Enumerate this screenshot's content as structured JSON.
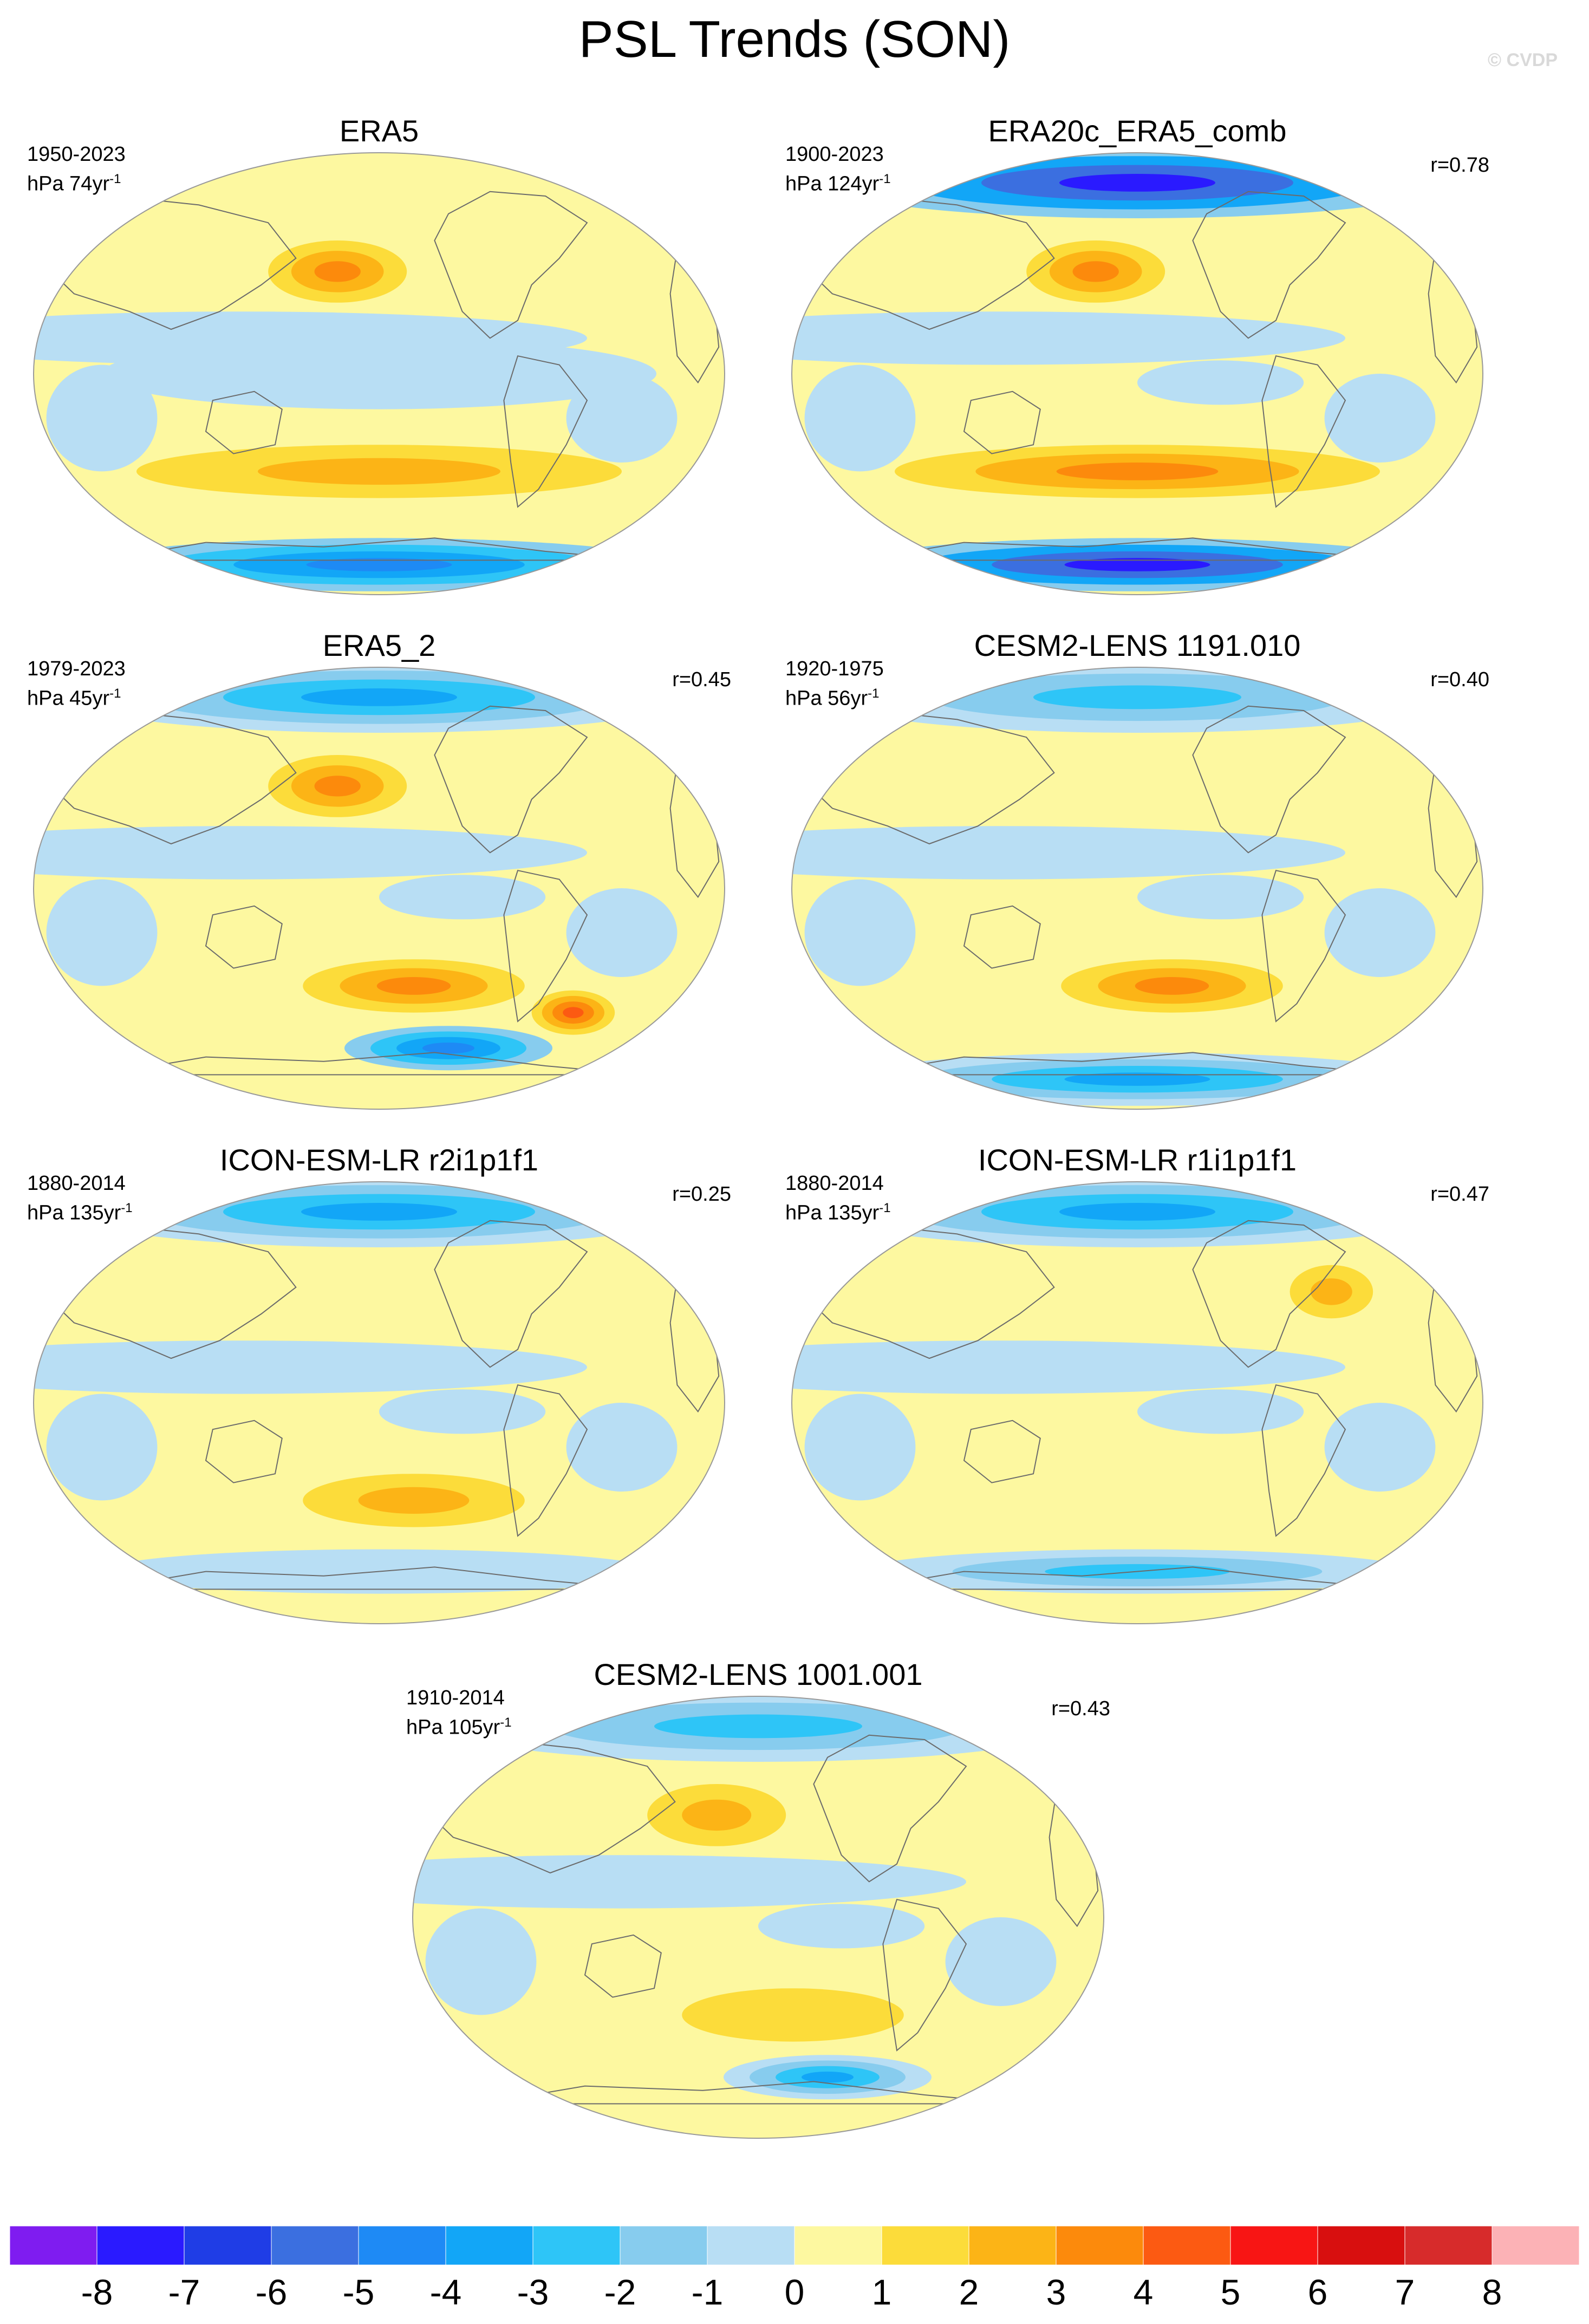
{
  "title": "PSL Trends (SON)",
  "watermark": "© CVDP",
  "panels": [
    {
      "title": "ERA5",
      "period": "1950-2023",
      "units": "hPa 74yr",
      "units_sup": "-1",
      "r": ""
    },
    {
      "title": "ERA20c_ERA5_comb",
      "period": "1900-2023",
      "units": "hPa 124yr",
      "units_sup": "-1",
      "r": "r=0.78"
    },
    {
      "title": "ERA5_2",
      "period": "1979-2023",
      "units": "hPa 45yr",
      "units_sup": "-1",
      "r": "r=0.45"
    },
    {
      "title": "CESM2-LENS 1191.010",
      "period": "1920-1975",
      "units": "hPa 56yr",
      "units_sup": "-1",
      "r": "r=0.40"
    },
    {
      "title": "ICON-ESM-LR r2i1p1f1",
      "period": "1880-2014",
      "units": "hPa 135yr",
      "units_sup": "-1",
      "r": "r=0.25"
    },
    {
      "title": "ICON-ESM-LR r1i1p1f1",
      "period": "1880-2014",
      "units": "hPa 135yr",
      "units_sup": "-1",
      "r": "r=0.47"
    },
    {
      "title": "CESM2-LENS 1001.001",
      "period": "1910-2014",
      "units": "hPa 105yr",
      "units_sup": "-1",
      "r": "r=0.43"
    }
  ],
  "colorbar": {
    "ticks": [
      "-8",
      "-7",
      "-6",
      "-5",
      "-4",
      "-3",
      "-2",
      "-1",
      "0",
      "1",
      "2",
      "3",
      "4",
      "5",
      "6",
      "7",
      "8"
    ],
    "colors": [
      "#7f1cf0",
      "#2a1aff",
      "#1f3de6",
      "#3b6fe0",
      "#1e8af5",
      "#12a6f7",
      "#2ec5f7",
      "#87ccee",
      "#b8def4",
      "#fdf8a0",
      "#fcdc3a",
      "#fcb416",
      "#fc8a0c",
      "#fc5a12",
      "#f81514",
      "#d80f0f",
      "#d72b2b",
      "#fcb2b6"
    ]
  },
  "chart_data": {
    "type": "heatmap",
    "projection": "Robinson world map, Pacific-centred",
    "variable": "PSL trend",
    "units": "hPa",
    "levels": [
      -8,
      -7,
      -6,
      -5,
      -4,
      -3,
      -2,
      -1,
      0,
      1,
      2,
      3,
      4,
      5,
      6,
      7,
      8
    ],
    "panels": [
      {
        "name": "ERA5",
        "period": "1950-2023",
        "r": null,
        "features": [
          {
            "region": "North Pacific",
            "value": 3
          },
          {
            "region": "Southern mid-latitudes",
            "value": 2
          },
          {
            "region": "Antarctic",
            "value": -5
          },
          {
            "region": "Tropics",
            "value": -1
          }
        ]
      },
      {
        "name": "ERA20c_ERA5_comb",
        "period": "1900-2023",
        "r": 0.78,
        "features": [
          {
            "region": "Arctic",
            "value": -8
          },
          {
            "region": "North Pacific",
            "value": 3
          },
          {
            "region": "Southern mid-latitudes",
            "value": 3
          },
          {
            "region": "Antarctic",
            "value": -8
          }
        ]
      },
      {
        "name": "ERA5_2",
        "period": "1979-2023",
        "r": 0.45,
        "features": [
          {
            "region": "Arctic",
            "value": -4
          },
          {
            "region": "North Pacific",
            "value": 3
          },
          {
            "region": "South Pacific",
            "value": 3
          },
          {
            "region": "South Atlantic",
            "value": 4
          },
          {
            "region": "Antarctic coast",
            "value": -5
          }
        ]
      },
      {
        "name": "CESM2-LENS 1191.010",
        "period": "1920-1975",
        "r": 0.4,
        "features": [
          {
            "region": "Arctic",
            "value": -3
          },
          {
            "region": "South Pacific",
            "value": 3
          },
          {
            "region": "Antarctic",
            "value": -4
          }
        ]
      },
      {
        "name": "ICON-ESM-LR r2i1p1f1",
        "period": "1880-2014",
        "r": 0.25,
        "features": [
          {
            "region": "Arctic",
            "value": -4
          },
          {
            "region": "South Pacific",
            "value": 2
          },
          {
            "region": "Southern Ocean",
            "value": -1
          }
        ]
      },
      {
        "name": "ICON-ESM-LR r1i1p1f1",
        "period": "1880-2014",
        "r": 0.47,
        "features": [
          {
            "region": "Arctic",
            "value": -4
          },
          {
            "region": "North Atlantic",
            "value": 2
          },
          {
            "region": "Southern Ocean",
            "value": -3
          }
        ]
      },
      {
        "name": "CESM2-LENS 1001.001",
        "period": "1910-2014",
        "r": 0.43,
        "features": [
          {
            "region": "Arctic",
            "value": -3
          },
          {
            "region": "North Pacific",
            "value": 2
          },
          {
            "region": "South Pacific",
            "value": 1
          },
          {
            "region": "Antarctic coast",
            "value": -4
          }
        ]
      }
    ]
  }
}
